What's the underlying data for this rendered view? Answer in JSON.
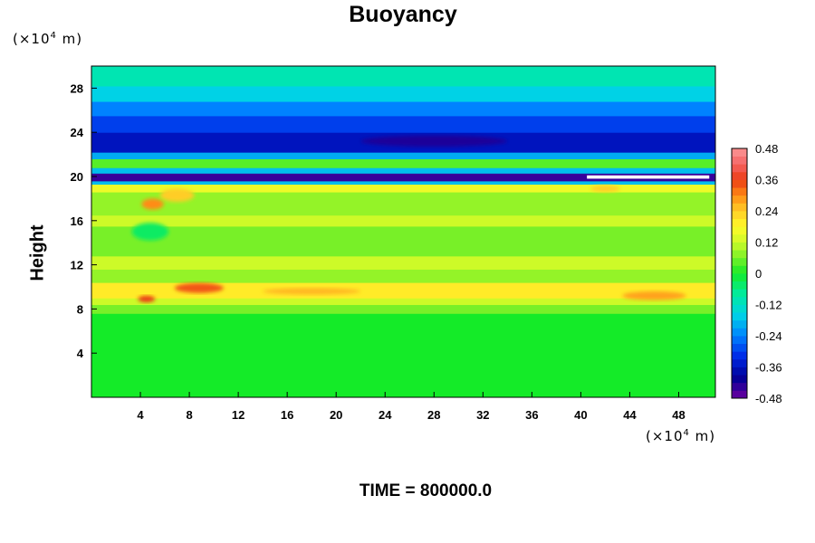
{
  "chart_data": {
    "type": "heatmap",
    "title": "Buoyancy",
    "ylabel": "Height",
    "x_unit": "(×10⁴ m)",
    "y_unit": "(×10⁴ m)",
    "x_unit_base": "(×10",
    "x_unit_exp": "4",
    "x_unit_tail": " m)",
    "xlim": [
      0,
      51
    ],
    "ylim": [
      0,
      30
    ],
    "x_ticks": [
      4,
      8,
      12,
      16,
      20,
      24,
      28,
      32,
      36,
      40,
      44,
      48
    ],
    "y_ticks": [
      4,
      8,
      12,
      16,
      20,
      24,
      28
    ],
    "colorbar": {
      "min": -0.48,
      "max": 0.48,
      "labels": [
        "0.48",
        "0.36",
        "0.24",
        "0.12",
        "0",
        "-0.12",
        "-0.24",
        "-0.36",
        "-0.48"
      ],
      "label_values": [
        0.48,
        0.36,
        0.24,
        0.12,
        0,
        -0.12,
        -0.24,
        -0.36,
        -0.48
      ]
    },
    "bands": [
      {
        "y0": 0,
        "y1": 7.6,
        "value": 0.0
      },
      {
        "y0": 7.6,
        "y1": 8.4,
        "value": 0.06
      },
      {
        "y0": 8.4,
        "y1": 9.0,
        "value": 0.12
      },
      {
        "y0": 9.0,
        "y1": 10.4,
        "value": 0.2
      },
      {
        "y0": 10.4,
        "y1": 11.6,
        "value": 0.08
      },
      {
        "y0": 11.6,
        "y1": 12.8,
        "value": 0.12
      },
      {
        "y0": 12.8,
        "y1": 15.5,
        "value": 0.06
      },
      {
        "y0": 15.5,
        "y1": 16.5,
        "value": 0.12
      },
      {
        "y0": 16.5,
        "y1": 18.6,
        "value": 0.08
      },
      {
        "y0": 18.6,
        "y1": 19.3,
        "value": 0.16
      },
      {
        "y0": 19.3,
        "y1": 19.6,
        "value": -0.18
      },
      {
        "y0": 19.6,
        "y1": 20.3,
        "value": -0.44
      },
      {
        "y0": 20.3,
        "y1": 20.8,
        "value": -0.18
      },
      {
        "y0": 20.8,
        "y1": 21.6,
        "value": 0.04
      },
      {
        "y0": 21.6,
        "y1": 22.2,
        "value": -0.2
      },
      {
        "y0": 22.2,
        "y1": 24.0,
        "value": -0.36
      },
      {
        "y0": 24.0,
        "y1": 25.5,
        "value": -0.3
      },
      {
        "y0": 25.5,
        "y1": 26.8,
        "value": -0.24
      },
      {
        "y0": 26.8,
        "y1": 28.2,
        "value": -0.16
      },
      {
        "y0": 28.2,
        "y1": 30.0,
        "value": -0.1
      }
    ],
    "blobs": [
      {
        "x": 5,
        "y": 17.5,
        "rx": 0.9,
        "ry": 0.5,
        "value": 0.3
      },
      {
        "x": 7,
        "y": 18.3,
        "rx": 1.4,
        "ry": 0.6,
        "value": 0.24
      },
      {
        "x": 8.8,
        "y": 9.9,
        "rx": 2.0,
        "ry": 0.45,
        "value": 0.34
      },
      {
        "x": 4.5,
        "y": 8.9,
        "rx": 0.7,
        "ry": 0.3,
        "value": 0.36
      },
      {
        "x": 46,
        "y": 9.2,
        "rx": 2.6,
        "ry": 0.4,
        "value": 0.28
      },
      {
        "x": 42,
        "y": 18.9,
        "rx": 1.2,
        "ry": 0.3,
        "value": 0.24
      },
      {
        "x": 28,
        "y": 23.2,
        "rx": 6.0,
        "ry": 0.5,
        "value": -0.42
      },
      {
        "x": 4.8,
        "y": 15.0,
        "rx": 1.5,
        "ry": 0.8,
        "value": -0.04
      },
      {
        "x": 18,
        "y": 9.6,
        "rx": 4.0,
        "ry": 0.3,
        "value": 0.26
      }
    ],
    "white_gap": {
      "x0": 40.5,
      "x1": 50.5,
      "y0": 19.8,
      "y1": 20.1
    }
  },
  "time_label": "TIME = 800000.0"
}
